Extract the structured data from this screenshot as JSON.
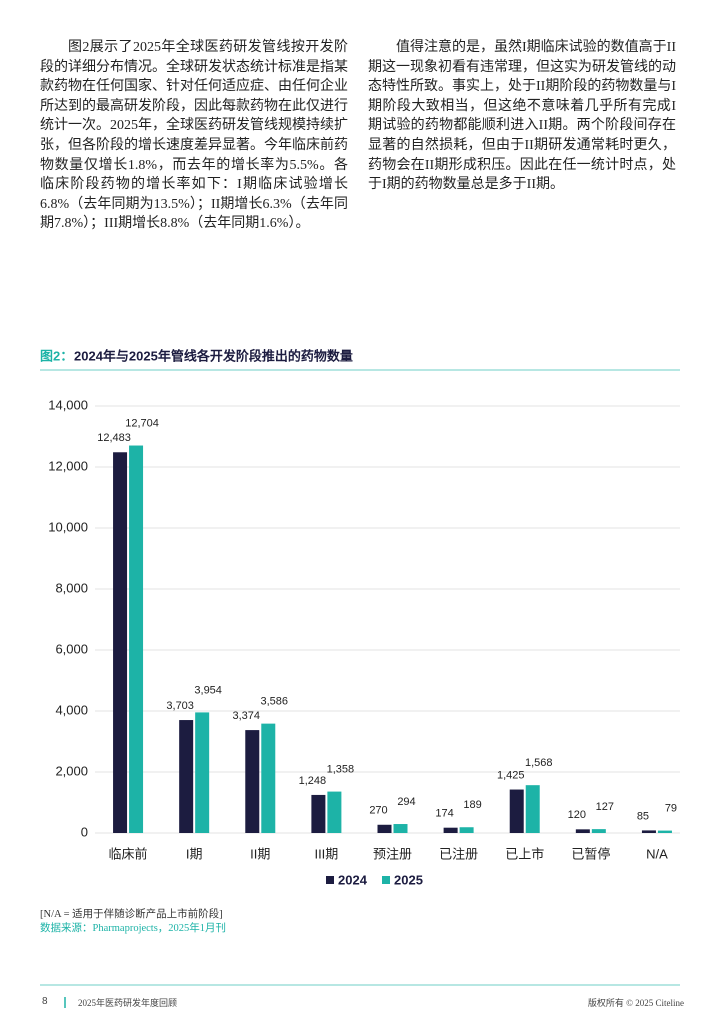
{
  "left_paragraph": "图2展示了2025年全球医药研发管线按开发阶段的详细分布情况。全球研发状态统计标准是指某款药物在任何国家、针对任何适应症、由任何企业所达到的最高研发阶段，因此每款药物在此仅进行统计一次。2025年，全球医药研发管线规模持续扩张，但各阶段的增长速度差异显著。今年临床前药物数量仅增长1.8%，而去年的增长率为5.5%。各临床阶段药物的增长率如下：I期临床试验增长6.8%（去年同期为13.5%）；II期增长6.3%（去年同期7.8%）；III期增长8.8%（去年同期1.6%）。",
  "right_paragraph": "值得注意的是，虽然I期临床试验的数值高于II期这一现象初看有违常理，但这实为研发管线的动态特性所致。事实上，处于II期阶段的药物数量与I期阶段大致相当，但这绝不意味着几乎所有完成I期试验的药物都能顺利进入II期。两个阶段间存在显著的自然损耗，但由于II期研发通常耗时更久，药物会在II期形成积压。因此在任一统计时点，处于I期的药物数量总是多于II期。",
  "chart_data": {
    "type": "bar",
    "figure_label": "图2：",
    "title": "2024年与2025年管线各开发阶段推出的药物数量",
    "categories": [
      "临床前",
      "I期",
      "II期",
      "III期",
      "预注册",
      "已注册",
      "已上市",
      "已暂停",
      "N/A"
    ],
    "series": [
      {
        "name": "2024",
        "color": "#1c1c40",
        "values": [
          12483,
          3703,
          3374,
          1248,
          270,
          174,
          1425,
          120,
          85
        ],
        "value_labels": [
          "12,483",
          "3,703",
          "3,374",
          "1,248",
          "270",
          "174",
          "1,425",
          "120",
          "85"
        ]
      },
      {
        "name": "2025",
        "color": "#1db3a7",
        "values": [
          12704,
          3954,
          3586,
          1358,
          294,
          189,
          1568,
          127,
          79
        ],
        "value_labels": [
          "12,704",
          "3,954",
          "3,586",
          "1,358",
          "294",
          "189",
          "1,568",
          "127",
          "79"
        ]
      }
    ],
    "ylim": [
      0,
      14000
    ],
    "yticks": [
      0,
      {
        "value": 2000,
        "label": "2,000"
      },
      {
        "value": 4000,
        "label": "4,000"
      },
      {
        "value": 6000,
        "label": "6,000"
      },
      {
        "value": 8000,
        "label": "8,000"
      },
      {
        "value": 10000,
        "label": "10,000"
      },
      {
        "value": 12000,
        "label": "12,000"
      },
      {
        "value": 14000,
        "label": "14,000"
      }
    ],
    "grid": true,
    "legend": "bottom"
  },
  "notes": [
    "[N/A = 适用于伴随诊断产品上市前阶段]",
    "数据来源：Pharmaprojects，2025年1月刊"
  ],
  "footer": {
    "page": "8",
    "title": "2025年医药研发年度回顾",
    "copyright": "版权所有 © 2025 Citeline"
  }
}
